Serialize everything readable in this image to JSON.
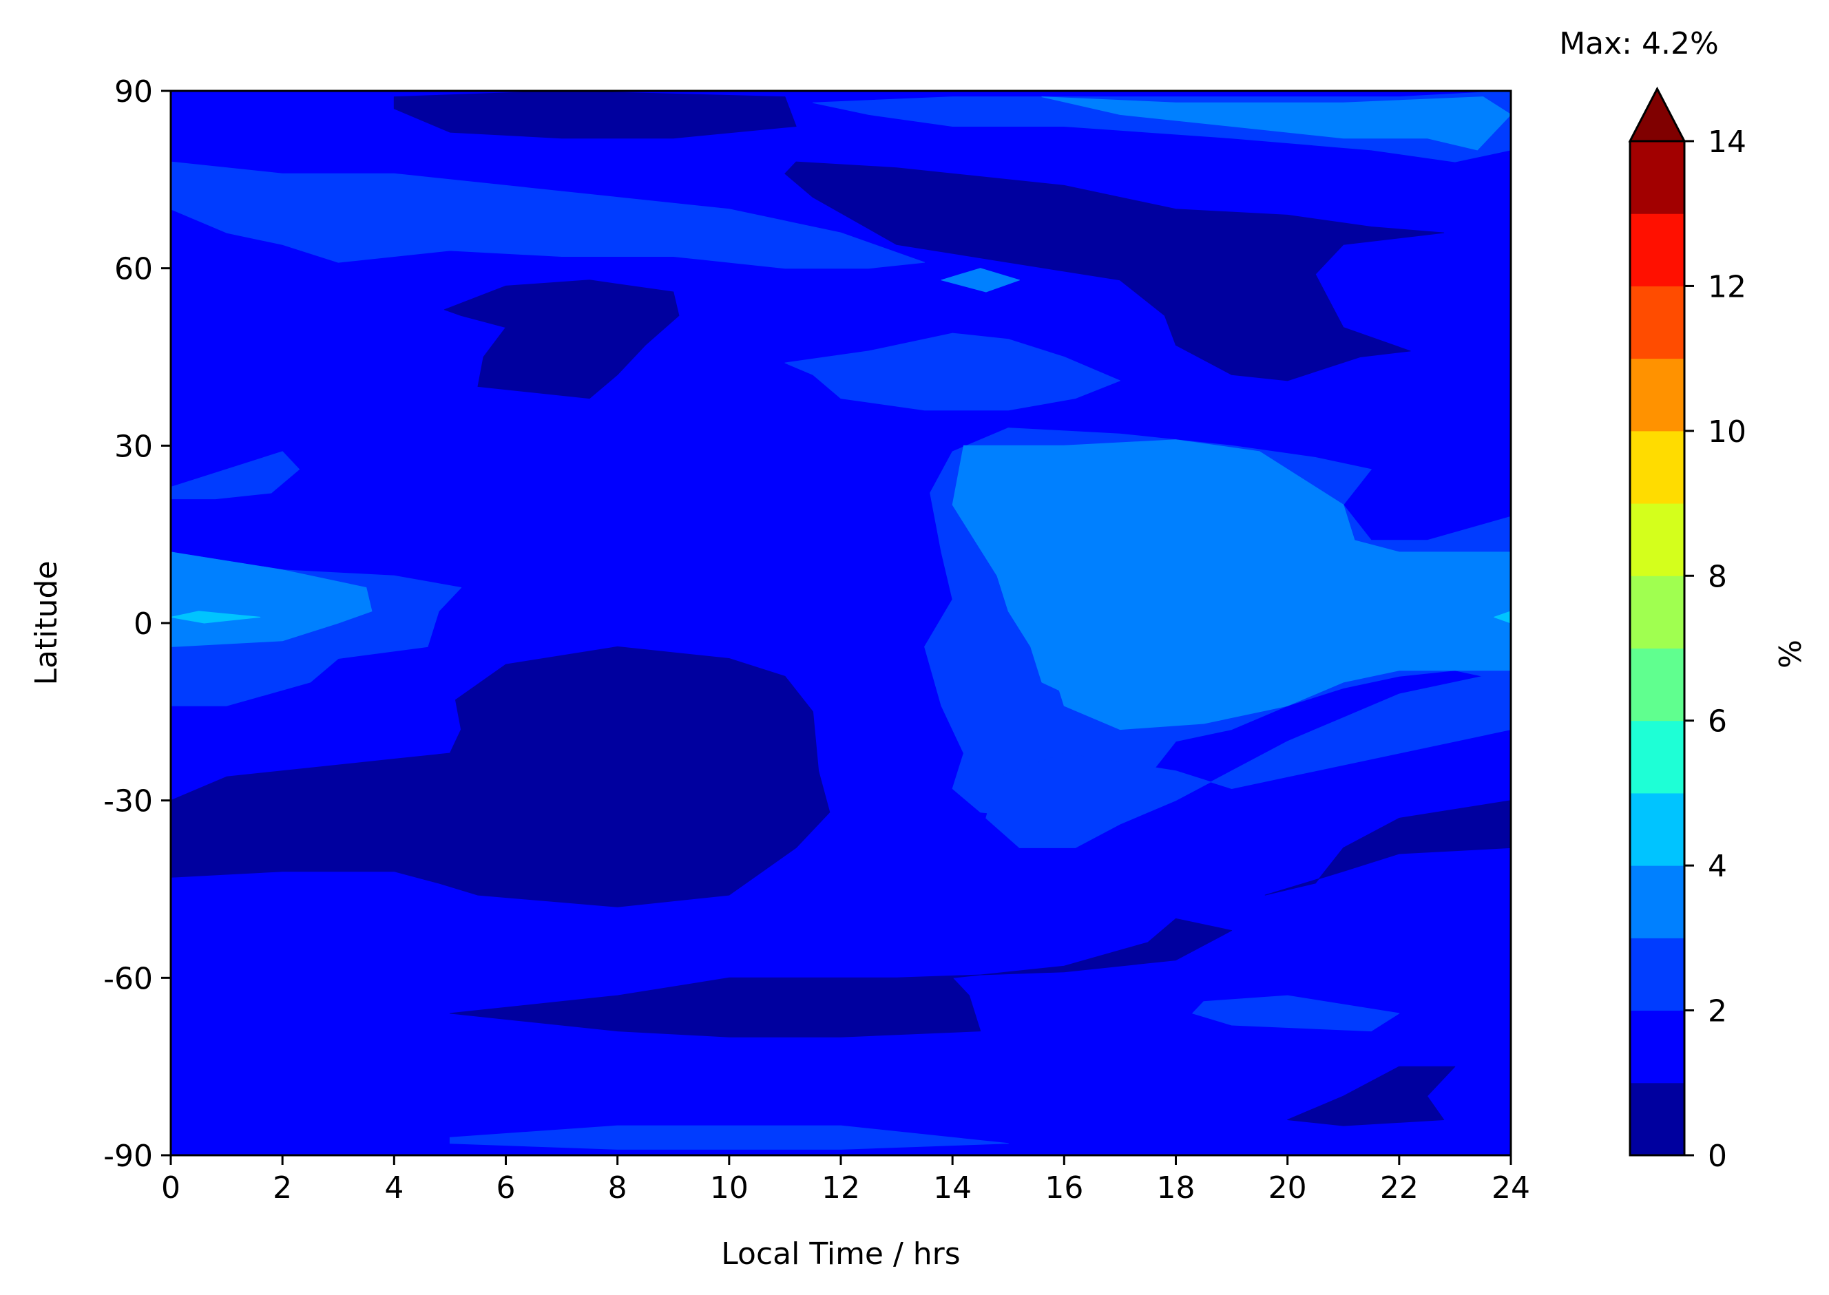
{
  "chart_data": {
    "type": "heatmap",
    "plot_kind": "filled-contour",
    "xlabel": "Local Time / hrs",
    "ylabel": "Latitude",
    "xlim": [
      0,
      24
    ],
    "ylim": [
      -90,
      90
    ],
    "x_ticks": [
      0,
      2,
      4,
      6,
      8,
      10,
      12,
      14,
      16,
      18,
      20,
      22,
      24
    ],
    "y_ticks": [
      -90,
      -60,
      -30,
      0,
      30,
      60,
      90
    ],
    "y_tick_labels": [
      "-90",
      "-60",
      "-30",
      "0",
      "30",
      "60",
      "90"
    ],
    "max_annotation": "Max: 4.2%",
    "colorbar": {
      "label": "%",
      "ticks": [
        0,
        2,
        4,
        6,
        8,
        10,
        12,
        14
      ],
      "levels": [
        0,
        1,
        2,
        3,
        4,
        5,
        6,
        7,
        8,
        9,
        10,
        11,
        12,
        13,
        14
      ],
      "colors": [
        "#00009f",
        "#0000ff",
        "#003cff",
        "#0080ff",
        "#00c4ff",
        "#1effd6",
        "#60ff8f",
        "#a0ff50",
        "#d4ff1c",
        "#ffdc00",
        "#ff9200",
        "#ff4c00",
        "#ff1000",
        "#a20000"
      ],
      "extend_color": "#800000",
      "extend": "max"
    },
    "background_level_color": "#0000ff",
    "regions": [
      {
        "level": "0-1",
        "color": "#00009f",
        "points": [
          [
            5.1,
            -13
          ],
          [
            6,
            -7
          ],
          [
            8,
            -4
          ],
          [
            10,
            -6
          ],
          [
            11,
            -9
          ],
          [
            11.5,
            -15
          ],
          [
            11.6,
            -25
          ],
          [
            11.8,
            -32
          ],
          [
            11.2,
            -38
          ],
          [
            10.6,
            -42
          ],
          [
            10,
            -46
          ],
          [
            8,
            -48
          ],
          [
            5.5,
            -46
          ],
          [
            4.8,
            -44
          ],
          [
            4,
            -42
          ],
          [
            2,
            -42
          ],
          [
            0,
            -43
          ],
          [
            0,
            -30
          ],
          [
            1,
            -26
          ],
          [
            4,
            -23
          ],
          [
            5,
            -22
          ],
          [
            5.2,
            -18
          ]
        ]
      },
      {
        "level": "0-1",
        "color": "#00009f",
        "points": [
          [
            4.9,
            53
          ],
          [
            6,
            57
          ],
          [
            7.5,
            58
          ],
          [
            9,
            56
          ],
          [
            9.1,
            52
          ],
          [
            8.5,
            47
          ],
          [
            8,
            42
          ],
          [
            7.5,
            38
          ],
          [
            6.5,
            39
          ],
          [
            5.5,
            40
          ],
          [
            5.6,
            45
          ],
          [
            6,
            50
          ],
          [
            5.2,
            52
          ]
        ]
      },
      {
        "level": "0-1",
        "color": "#00009f",
        "points": [
          [
            11.2,
            78
          ],
          [
            13,
            77
          ],
          [
            16,
            74
          ],
          [
            18,
            70
          ],
          [
            20,
            69
          ],
          [
            21.5,
            67
          ],
          [
            22.8,
            66
          ],
          [
            21,
            64
          ],
          [
            20.5,
            59
          ],
          [
            21,
            50
          ],
          [
            22.2,
            46
          ],
          [
            21.3,
            45
          ],
          [
            20,
            41
          ],
          [
            19,
            42
          ],
          [
            18,
            47
          ],
          [
            17.8,
            52
          ],
          [
            17,
            58
          ],
          [
            15,
            61
          ],
          [
            13,
            64
          ],
          [
            11.5,
            72
          ],
          [
            11,
            76
          ]
        ]
      },
      {
        "level": "0-1",
        "color": "#00009f",
        "points": [
          [
            4,
            89
          ],
          [
            7,
            90
          ],
          [
            11,
            89
          ],
          [
            11.2,
            84
          ],
          [
            9,
            82
          ],
          [
            7,
            82
          ],
          [
            5,
            83
          ],
          [
            4,
            87
          ]
        ]
      },
      {
        "level": "0-1",
        "color": "#00009f",
        "points": [
          [
            5,
            -66
          ],
          [
            8,
            -63
          ],
          [
            10,
            -60
          ],
          [
            13,
            -60
          ],
          [
            16,
            -59
          ],
          [
            18,
            -57
          ],
          [
            19,
            -52
          ],
          [
            18,
            -50
          ],
          [
            17.5,
            -54
          ],
          [
            16,
            -58
          ],
          [
            14,
            -60
          ],
          [
            14.3,
            -63
          ],
          [
            14.5,
            -69
          ],
          [
            12,
            -70
          ],
          [
            10,
            -70
          ],
          [
            8,
            -69
          ],
          [
            6,
            -67
          ]
        ]
      },
      {
        "level": "0-1",
        "color": "#00009f",
        "points": [
          [
            20,
            -84
          ],
          [
            21,
            -80
          ],
          [
            22,
            -75
          ],
          [
            23,
            -75
          ],
          [
            22.5,
            -80
          ],
          [
            22.8,
            -84
          ],
          [
            21,
            -85
          ]
        ]
      },
      {
        "level": "0-1",
        "color": "#00009f",
        "points": [
          [
            19.6,
            -46
          ],
          [
            21,
            -42
          ],
          [
            22,
            -39
          ],
          [
            24,
            -38
          ],
          [
            24,
            -30
          ],
          [
            22,
            -33
          ],
          [
            21,
            -38
          ],
          [
            20.5,
            -44
          ]
        ]
      },
      {
        "level": "2-3",
        "color": "#003cff",
        "points": [
          [
            0,
            12
          ],
          [
            2,
            9
          ],
          [
            4,
            8
          ],
          [
            5.2,
            6
          ],
          [
            4.8,
            2
          ],
          [
            4.6,
            -4
          ],
          [
            3,
            -6
          ],
          [
            2.5,
            -10
          ],
          [
            1,
            -14
          ],
          [
            0,
            -14
          ]
        ]
      },
      {
        "level": "2-3",
        "color": "#003cff",
        "points": [
          [
            0,
            23
          ],
          [
            1,
            26
          ],
          [
            2,
            29
          ],
          [
            2.3,
            26
          ],
          [
            1.8,
            22
          ],
          [
            0.8,
            21
          ],
          [
            0,
            21
          ]
        ]
      },
      {
        "level": "2-3",
        "color": "#003cff",
        "points": [
          [
            13.6,
            22
          ],
          [
            14,
            29
          ],
          [
            15,
            33
          ],
          [
            17,
            32
          ],
          [
            19,
            30
          ],
          [
            20.5,
            28
          ],
          [
            21.5,
            26
          ],
          [
            21,
            20
          ],
          [
            21.5,
            14
          ],
          [
            22.5,
            14
          ],
          [
            24,
            18
          ],
          [
            24,
            -10
          ],
          [
            23,
            -8
          ],
          [
            22,
            -9
          ],
          [
            21,
            -11
          ],
          [
            20,
            -14
          ],
          [
            19,
            -18
          ],
          [
            18,
            -20
          ],
          [
            17.5,
            -26
          ],
          [
            16.5,
            -30
          ],
          [
            15.5,
            -33
          ],
          [
            14.5,
            -32
          ],
          [
            14,
            -28
          ],
          [
            14.2,
            -22
          ],
          [
            13.8,
            -14
          ],
          [
            13.5,
            -4
          ],
          [
            14,
            4
          ],
          [
            13.8,
            12
          ]
        ]
      },
      {
        "level": "2-3",
        "color": "#003cff",
        "points": [
          [
            14.8,
            -26
          ],
          [
            16,
            -22
          ],
          [
            18,
            -25
          ],
          [
            19,
            -28
          ],
          [
            20,
            -26
          ],
          [
            22,
            -22
          ],
          [
            24,
            -18
          ],
          [
            24,
            -8
          ],
          [
            22,
            -12
          ],
          [
            21,
            -16
          ],
          [
            20,
            -20
          ],
          [
            19,
            -25
          ],
          [
            18,
            -30
          ],
          [
            17,
            -34
          ],
          [
            16.2,
            -38
          ],
          [
            15.2,
            -38
          ],
          [
            14.6,
            -33
          ]
        ]
      },
      {
        "level": "2-3",
        "color": "#003cff",
        "points": [
          [
            0,
            78
          ],
          [
            2,
            76
          ],
          [
            4,
            76
          ],
          [
            6,
            74
          ],
          [
            8,
            72
          ],
          [
            10,
            70
          ],
          [
            12,
            66
          ],
          [
            13.5,
            61
          ],
          [
            12.5,
            60
          ],
          [
            11,
            60
          ],
          [
            9,
            62
          ],
          [
            7,
            62
          ],
          [
            5,
            63
          ],
          [
            3,
            61
          ],
          [
            2,
            64
          ],
          [
            1,
            66
          ],
          [
            0,
            70
          ]
        ]
      },
      {
        "level": "2-3",
        "color": "#003cff",
        "points": [
          [
            11.5,
            88
          ],
          [
            14,
            89
          ],
          [
            18,
            89
          ],
          [
            22,
            89
          ],
          [
            24,
            90
          ],
          [
            24,
            80
          ],
          [
            23,
            78
          ],
          [
            21.5,
            80
          ],
          [
            19,
            82
          ],
          [
            16,
            84
          ],
          [
            14,
            84
          ],
          [
            12.5,
            86
          ]
        ]
      },
      {
        "level": "2-3",
        "color": "#003cff",
        "points": [
          [
            11,
            44
          ],
          [
            12.5,
            46
          ],
          [
            14,
            49
          ],
          [
            15,
            48
          ],
          [
            16,
            45
          ],
          [
            17,
            41
          ],
          [
            16.2,
            38
          ],
          [
            15,
            36
          ],
          [
            13.5,
            36
          ],
          [
            12,
            38
          ],
          [
            11.5,
            42
          ]
        ]
      },
      {
        "level": "2-3",
        "color": "#003cff",
        "points": [
          [
            18.5,
            -64
          ],
          [
            20,
            -63
          ],
          [
            22,
            -66
          ],
          [
            21.5,
            -69
          ],
          [
            19,
            -68
          ],
          [
            18.3,
            -66
          ]
        ]
      },
      {
        "level": "2-3",
        "color": "#003cff",
        "points": [
          [
            5,
            -87
          ],
          [
            8,
            -85
          ],
          [
            12,
            -85
          ],
          [
            15,
            -88
          ],
          [
            12,
            -89
          ],
          [
            8,
            -89
          ],
          [
            5,
            -88
          ]
        ]
      },
      {
        "level": "3-4",
        "color": "#0080ff",
        "points": [
          [
            0,
            12
          ],
          [
            2,
            9
          ],
          [
            3.5,
            6
          ],
          [
            3.6,
            2
          ],
          [
            3,
            0
          ],
          [
            2,
            -3
          ],
          [
            0,
            -4
          ]
        ]
      },
      {
        "level": "3-4",
        "color": "#0080ff",
        "points": [
          [
            14.2,
            30
          ],
          [
            16,
            30
          ],
          [
            18,
            31
          ],
          [
            19.5,
            29
          ],
          [
            21,
            20
          ],
          [
            21.2,
            14
          ],
          [
            22,
            12
          ],
          [
            24,
            12
          ],
          [
            24,
            -4
          ],
          [
            22,
            -5
          ],
          [
            20,
            -6
          ],
          [
            19,
            -10
          ],
          [
            18,
            -15
          ],
          [
            17,
            -16
          ],
          [
            16.5,
            -14
          ],
          [
            15.6,
            -10
          ],
          [
            15.4,
            -4
          ],
          [
            15,
            2
          ],
          [
            14.8,
            8
          ],
          [
            14.4,
            14
          ],
          [
            14,
            20
          ]
        ]
      },
      {
        "level": "3-4",
        "color": "#0080ff",
        "points": [
          [
            15.8,
            2
          ],
          [
            17,
            2
          ],
          [
            19,
            0
          ],
          [
            20,
            2
          ],
          [
            22,
            2
          ],
          [
            24,
            0
          ],
          [
            24,
            -8
          ],
          [
            22,
            -8
          ],
          [
            21,
            -10
          ],
          [
            20,
            -14
          ],
          [
            18.5,
            -17
          ],
          [
            17,
            -18
          ],
          [
            16,
            -14
          ],
          [
            15.8,
            -8
          ],
          [
            15.7,
            -4
          ]
        ]
      },
      {
        "level": "3-4",
        "color": "#0080ff",
        "points": [
          [
            15.6,
            89
          ],
          [
            18,
            88
          ],
          [
            21,
            88
          ],
          [
            23.5,
            89
          ],
          [
            24,
            86
          ],
          [
            23.4,
            80
          ],
          [
            22.5,
            82
          ],
          [
            21,
            82
          ],
          [
            19,
            84
          ],
          [
            17,
            86
          ]
        ]
      },
      {
        "level": "3-4",
        "color": "#0080ff",
        "points": [
          [
            13.8,
            58
          ],
          [
            14.5,
            60
          ],
          [
            15.2,
            58
          ],
          [
            14.6,
            56
          ]
        ]
      },
      {
        "level": "4-5",
        "color": "#00c4ff",
        "points": [
          [
            0,
            1
          ],
          [
            0.5,
            2
          ],
          [
            1.6,
            1
          ],
          [
            0.6,
            0
          ]
        ]
      },
      {
        "level": "4-5",
        "color": "#00c4ff",
        "points": [
          [
            23.7,
            1
          ],
          [
            24,
            2
          ],
          [
            24,
            0
          ]
        ]
      }
    ]
  }
}
